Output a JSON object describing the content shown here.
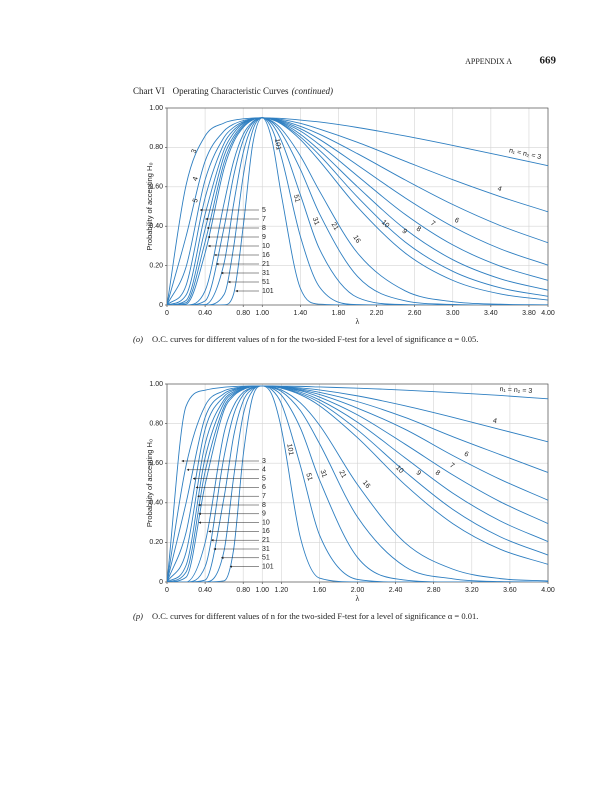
{
  "header": {
    "section": "APPENDIX A",
    "page": "669"
  },
  "heading": {
    "label": "Chart VI",
    "text": "Operating Characteristic Curves",
    "note": "(continued)"
  },
  "chart_data": [
    {
      "type": "line",
      "ylabel": "Probability of accepting H₀",
      "xlabel": "λ",
      "caption_label": "(o)",
      "caption": "O.C. curves for different values of n for the two-sided F-test for a level of significance α = 0.05.",
      "curve_label": "n₁ = n₂ = 3",
      "color": "#2f7fc1",
      "grid": true,
      "xlim": [
        0,
        4
      ],
      "ylim": [
        0,
        1
      ],
      "xticks": [
        0,
        {
          "value": 0.4,
          "label": "0.40"
        },
        {
          "value": 0.8,
          "label": "0.80"
        },
        {
          "value": 1,
          "label": "1.00"
        },
        {
          "value": 1.4,
          "label": "1.40"
        },
        {
          "value": 1.8,
          "label": "1.80"
        },
        {
          "value": 2.2,
          "label": "2.20"
        },
        {
          "value": 2.6,
          "label": "2.60"
        },
        {
          "value": 3,
          "label": "3.00"
        },
        {
          "value": 3.4,
          "label": "3.40"
        },
        {
          "value": 3.8,
          "label": "3.80"
        },
        {
          "value": 4,
          "label": "4.00"
        }
      ],
      "yticks": [
        0,
        {
          "value": 0.2,
          "label": "0.20"
        },
        {
          "value": 0.4,
          "label": "0.40"
        },
        {
          "value": 0.6,
          "label": "0.60"
        },
        {
          "value": 0.8,
          "label": "0.80"
        },
        {
          "value": 1,
          "label": "1.00"
        }
      ],
      "x": [
        0,
        0.2,
        0.4,
        0.6,
        0.7,
        0.8,
        0.9,
        1,
        1.1,
        1.2,
        1.4,
        1.6,
        2,
        2.5,
        3,
        3.5,
        4
      ],
      "series": [
        {
          "name": "3",
          "values": [
            0,
            0.608,
            0.858,
            0.924,
            0.938,
            0.945,
            0.949,
            0.95,
            0.949,
            0.947,
            0.939,
            0.929,
            0.901,
            0.858,
            0.81,
            0.759,
            0.707
          ]
        },
        {
          "name": "4",
          "values": [
            0,
            0.348,
            0.73,
            0.884,
            0.918,
            0.936,
            0.946,
            0.95,
            0.947,
            0.942,
            0.922,
            0.893,
            0.826,
            0.73,
            0.636,
            0.55,
            0.473
          ]
        },
        {
          "name": "5",
          "values": [
            0,
            0.193,
            0.635,
            0.852,
            0.902,
            0.93,
            0.945,
            0.95,
            0.946,
            0.937,
            0.907,
            0.867,
            0.768,
            0.635,
            0.51,
            0.403,
            0.316
          ]
        },
        {
          "name": "6",
          "values": [
            0,
            0.099,
            0.544,
            0.821,
            0.888,
            0.925,
            0.945,
            0.95,
            0.945,
            0.933,
            0.895,
            0.841,
            0.71,
            0.544,
            0.398,
            0.285,
            0.202
          ]
        },
        {
          "name": "7",
          "values": [
            0,
            0.05,
            0.46,
            0.788,
            0.873,
            0.921,
            0.943,
            0.95,
            0.944,
            0.929,
            0.883,
            0.814,
            0.655,
            0.46,
            0.305,
            0.197,
            0.125
          ]
        },
        {
          "name": "8",
          "values": [
            0,
            0.023,
            0.385,
            0.758,
            0.856,
            0.914,
            0.943,
            0.95,
            0.944,
            0.926,
            0.867,
            0.786,
            0.6,
            0.385,
            0.23,
            0.133,
            0.075
          ]
        },
        {
          "name": "9",
          "values": [
            0,
            0.012,
            0.32,
            0.724,
            0.841,
            0.907,
            0.941,
            0.95,
            0.943,
            0.922,
            0.853,
            0.761,
            0.548,
            0.32,
            0.171,
            0.087,
            0.044
          ]
        },
        {
          "name": "10",
          "values": [
            0,
            0.005,
            0.264,
            0.694,
            0.827,
            0.901,
            0.939,
            0.95,
            0.941,
            0.919,
            0.84,
            0.732,
            0.497,
            0.264,
            0.125,
            0.056,
            0.025
          ]
        },
        {
          "name": "16",
          "values": [
            0,
            0,
            0.072,
            0.518,
            0.731,
            0.866,
            0.93,
            0.95,
            0.934,
            0.894,
            0.757,
            0.579,
            0.264,
            0.072,
            0.017,
            0.004,
            0.001
          ]
        },
        {
          "name": "21",
          "values": [
            0,
            0,
            0.021,
            0.395,
            0.656,
            0.836,
            0.925,
            0.95,
            0.929,
            0.874,
            0.689,
            0.464,
            0.145,
            0.021,
            0.003,
            0,
            0
          ]
        },
        {
          "name": "31",
          "values": [
            0,
            0,
            0.002,
            0.214,
            0.514,
            0.773,
            0.912,
            0.95,
            0.919,
            0.834,
            0.56,
            0.285,
            0.038,
            0.002,
            0,
            0,
            0
          ]
        },
        {
          "name": "51",
          "values": [
            0,
            0,
            0,
            0.054,
            0.295,
            0.654,
            0.886,
            0.95,
            0.896,
            0.752,
            0.349,
            0.092,
            0.002,
            0,
            0,
            0,
            0
          ]
        },
        {
          "name": "101",
          "values": [
            0,
            0,
            0,
            0.001,
            0.057,
            0.398,
            0.817,
            0.95,
            0.841,
            0.56,
            0.085,
            0.004,
            0,
            0,
            0,
            0,
            0
          ]
        }
      ]
    },
    {
      "type": "line",
      "ylabel": "Probability of accepting H₀",
      "xlabel": "λ",
      "caption_label": "(p)",
      "caption": "O.C. curves for different values of n for the two-sided F-test for a level of significance α = 0.01.",
      "curve_label": "n₁ = n₂ = 3",
      "color": "#2f7fc1",
      "grid": true,
      "xlim": [
        0,
        4
      ],
      "ylim": [
        0,
        1
      ],
      "xticks": [
        0,
        {
          "value": 0.4,
          "label": "0.40"
        },
        {
          "value": 0.8,
          "label": "0.80"
        },
        {
          "value": 1,
          "label": "1.00"
        },
        {
          "value": 1.2,
          "label": "1.20"
        },
        {
          "value": 1.6,
          "label": "1.60"
        },
        {
          "value": 2,
          "label": "2.00"
        },
        {
          "value": 2.4,
          "label": "2.40"
        },
        {
          "value": 2.8,
          "label": "2.80"
        },
        {
          "value": 3.2,
          "label": "3.20"
        },
        {
          "value": 3.6,
          "label": "3.60"
        },
        {
          "value": 4,
          "label": "4.00"
        }
      ],
      "yticks": [
        0,
        {
          "value": 0.2,
          "label": "0.20"
        },
        {
          "value": 0.4,
          "label": "0.40"
        },
        {
          "value": 0.6,
          "label": "0.60"
        },
        {
          "value": 0.8,
          "label": "0.80"
        },
        {
          "value": 1,
          "label": "1.00"
        }
      ],
      "x": [
        0,
        0.2,
        0.4,
        0.6,
        0.7,
        0.8,
        0.9,
        1,
        1.1,
        1.2,
        1.4,
        1.6,
        2,
        2.5,
        3,
        3.5,
        4
      ],
      "series": [
        {
          "name": "3",
          "values": [
            0,
            0.888,
            0.969,
            0.984,
            0.987,
            0.989,
            0.99,
            0.99,
            0.99,
            0.989,
            0.988,
            0.985,
            0.979,
            0.969,
            0.956,
            0.942,
            0.925
          ]
        },
        {
          "name": "4",
          "values": [
            0,
            0.587,
            0.89,
            0.966,
            0.979,
            0.986,
            0.989,
            0.99,
            0.989,
            0.987,
            0.98,
            0.97,
            0.94,
            0.89,
            0.832,
            0.77,
            0.708
          ]
        },
        {
          "name": "5",
          "values": [
            0,
            0.399,
            0.831,
            0.952,
            0.973,
            0.983,
            0.988,
            0.99,
            0.988,
            0.986,
            0.975,
            0.958,
            0.911,
            0.831,
            0.734,
            0.643,
            0.553
          ]
        },
        {
          "name": "6",
          "values": [
            0,
            0.25,
            0.771,
            0.938,
            0.968,
            0.982,
            0.988,
            0.99,
            0.988,
            0.984,
            0.97,
            0.947,
            0.878,
            0.771,
            0.639,
            0.518,
            0.413
          ]
        },
        {
          "name": "7",
          "values": [
            0,
            0.15,
            0.696,
            0.921,
            0.961,
            0.98,
            0.988,
            0.99,
            0.988,
            0.983,
            0.966,
            0.934,
            0.844,
            0.696,
            0.541,
            0.405,
            0.295
          ]
        },
        {
          "name": "8",
          "values": [
            0,
            0.084,
            0.627,
            0.906,
            0.954,
            0.977,
            0.988,
            0.99,
            0.988,
            0.982,
            0.959,
            0.92,
            0.807,
            0.627,
            0.449,
            0.308,
            0.204
          ]
        },
        {
          "name": "9",
          "values": [
            0,
            0.05,
            0.557,
            0.886,
            0.947,
            0.975,
            0.987,
            0.99,
            0.988,
            0.981,
            0.952,
            0.907,
            0.768,
            0.557,
            0.367,
            0.228,
            0.136
          ]
        },
        {
          "name": "10",
          "values": [
            0,
            0.024,
            0.491,
            0.869,
            0.94,
            0.972,
            0.987,
            0.99,
            0.987,
            0.979,
            0.946,
            0.891,
            0.729,
            0.491,
            0.295,
            0.165,
            0.089
          ]
        },
        {
          "name": "16",
          "values": [
            0,
            0,
            0.198,
            0.755,
            0.89,
            0.958,
            0.983,
            0.99,
            0.984,
            0.97,
            0.905,
            0.793,
            0.492,
            0.198,
            0.065,
            0.017,
            0.005
          ]
        },
        {
          "name": "21",
          "values": [
            0,
            0,
            0.077,
            0.636,
            0.845,
            0.945,
            0.981,
            0.99,
            0.982,
            0.963,
            0.866,
            0.7,
            0.328,
            0.077,
            0.016,
            0.002,
            0
          ]
        },
        {
          "name": "31",
          "values": [
            0,
            0,
            0.01,
            0.43,
            0.738,
            0.914,
            0.976,
            0.99,
            0.979,
            0.944,
            0.778,
            0.517,
            0.124,
            0.01,
            0,
            0,
            0
          ]
        },
        {
          "name": "51",
          "values": [
            0,
            0,
            0,
            0.16,
            0.53,
            0.844,
            0.967,
            0.99,
            0.971,
            0.902,
            0.588,
            0.239,
            0.013,
            0,
            0,
            0,
            0
          ]
        },
        {
          "name": "101",
          "values": [
            0,
            0,
            0,
            0.006,
            0.166,
            0.639,
            0.936,
            0.99,
            0.947,
            0.776,
            0.225,
            0.02,
            0,
            0,
            0,
            0,
            0
          ]
        }
      ]
    }
  ]
}
